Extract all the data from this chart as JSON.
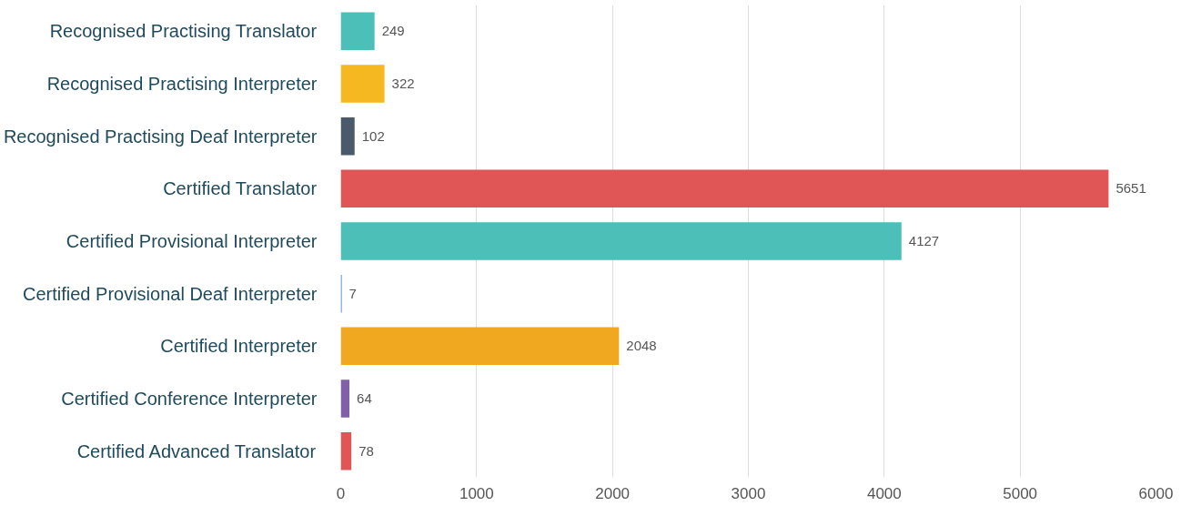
{
  "chart_data": {
    "type": "bar",
    "orientation": "horizontal",
    "categories": [
      "Recognised Practising Translator",
      "Recognised Practising Interpreter",
      "Recognised Practising Deaf Interpreter",
      "Certified Translator",
      "Certified Provisional Interpreter",
      "Certified Provisional Deaf Interpreter",
      "Certified Interpreter",
      "Certified Conference Interpreter",
      "Certified Advanced Translator"
    ],
    "values": [
      249,
      322,
      102,
      5651,
      4127,
      7,
      2048,
      64,
      78
    ],
    "colors": [
      "#4bbfb8",
      "#f5b820",
      "#4a5a6a",
      "#e05555",
      "#4bbfb8",
      "#3a78c8",
      "#f0a820",
      "#8060a8",
      "#e05555"
    ],
    "data_labels": true,
    "xlim": [
      0,
      6000
    ],
    "xticks": [
      0,
      1000,
      2000,
      3000,
      4000,
      5000,
      6000
    ],
    "grid": "x"
  }
}
